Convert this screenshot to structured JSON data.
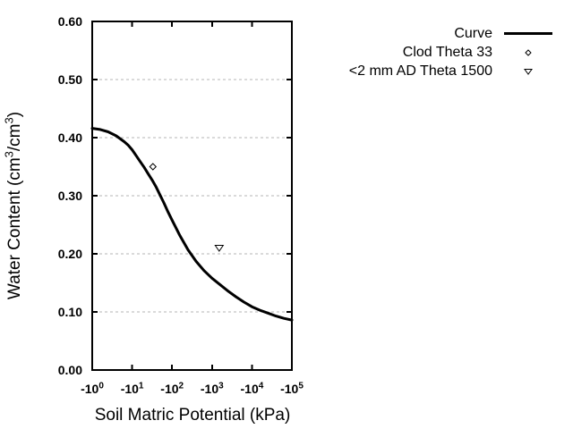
{
  "chart_data": {
    "type": "line",
    "title": "",
    "xlabel": "Soil Matric Potential (kPa)",
    "ylabel_parts": [
      {
        "t": "Water Content (cm"
      },
      {
        "sup": "3"
      },
      {
        "t": "/cm"
      },
      {
        "sup": "3"
      },
      {
        "t": ")"
      }
    ],
    "x_units": "log10 of negative kPa (decades)",
    "xlim_decades": [
      0,
      5
    ],
    "ylim": [
      0.0,
      0.6
    ],
    "x_ticks": [
      {
        "decade": 0,
        "base": "-10",
        "exp": "0"
      },
      {
        "decade": 1,
        "base": "-10",
        "exp": "1"
      },
      {
        "decade": 2,
        "base": "-10",
        "exp": "2"
      },
      {
        "decade": 3,
        "base": "-10",
        "exp": "3"
      },
      {
        "decade": 4,
        "base": "-10",
        "exp": "4"
      },
      {
        "decade": 5,
        "base": "-10",
        "exp": "5"
      }
    ],
    "y_ticks": [
      {
        "value": 0.0,
        "label": "0.00"
      },
      {
        "value": 0.1,
        "label": "0.10"
      },
      {
        "value": 0.2,
        "label": "0.20"
      },
      {
        "value": 0.3,
        "label": "0.30"
      },
      {
        "value": 0.4,
        "label": "0.40"
      },
      {
        "value": 0.5,
        "label": "0.50"
      },
      {
        "value": 0.6,
        "label": "0.60"
      }
    ],
    "grid_y": [
      0.1,
      0.2,
      0.3,
      0.4,
      0.5
    ],
    "grid_style": "dashed",
    "legend_position": "top-right-outside",
    "colors": {
      "line": "#000000",
      "grid": "#b4b4b4",
      "text": "#000000",
      "background": "#ffffff"
    },
    "series": [
      {
        "name": "Curve",
        "kind": "line",
        "marker": "line",
        "points": [
          [
            0.0,
            0.416
          ],
          [
            0.2,
            0.414
          ],
          [
            0.4,
            0.41
          ],
          [
            0.6,
            0.403
          ],
          [
            0.8,
            0.393
          ],
          [
            0.9,
            0.387
          ],
          [
            1.0,
            0.379
          ],
          [
            1.1,
            0.369
          ],
          [
            1.2,
            0.359
          ],
          [
            1.3,
            0.349
          ],
          [
            1.4,
            0.338
          ],
          [
            1.5,
            0.327
          ],
          [
            1.6,
            0.315
          ],
          [
            1.7,
            0.301
          ],
          [
            1.8,
            0.287
          ],
          [
            1.9,
            0.272
          ],
          [
            2.0,
            0.258
          ],
          [
            2.2,
            0.231
          ],
          [
            2.4,
            0.207
          ],
          [
            2.6,
            0.187
          ],
          [
            2.8,
            0.171
          ],
          [
            3.0,
            0.158
          ],
          [
            3.2,
            0.147
          ],
          [
            3.4,
            0.136
          ],
          [
            3.6,
            0.126
          ],
          [
            3.8,
            0.117
          ],
          [
            4.0,
            0.109
          ],
          [
            4.2,
            0.103
          ],
          [
            4.4,
            0.098
          ],
          [
            4.6,
            0.093
          ],
          [
            4.8,
            0.089
          ],
          [
            5.0,
            0.086
          ]
        ]
      },
      {
        "name": "Clod Theta 33",
        "kind": "scatter",
        "marker": "diamond-open",
        "value_kpa": -33,
        "theta": 0.35,
        "points": [
          [
            1.52,
            0.35
          ]
        ]
      },
      {
        "name": "<2 mm AD Theta 1500",
        "kind": "scatter",
        "marker": "triangle-down-open",
        "value_kpa": -1500,
        "theta": 0.21,
        "points": [
          [
            3.18,
            0.21
          ]
        ]
      }
    ]
  }
}
